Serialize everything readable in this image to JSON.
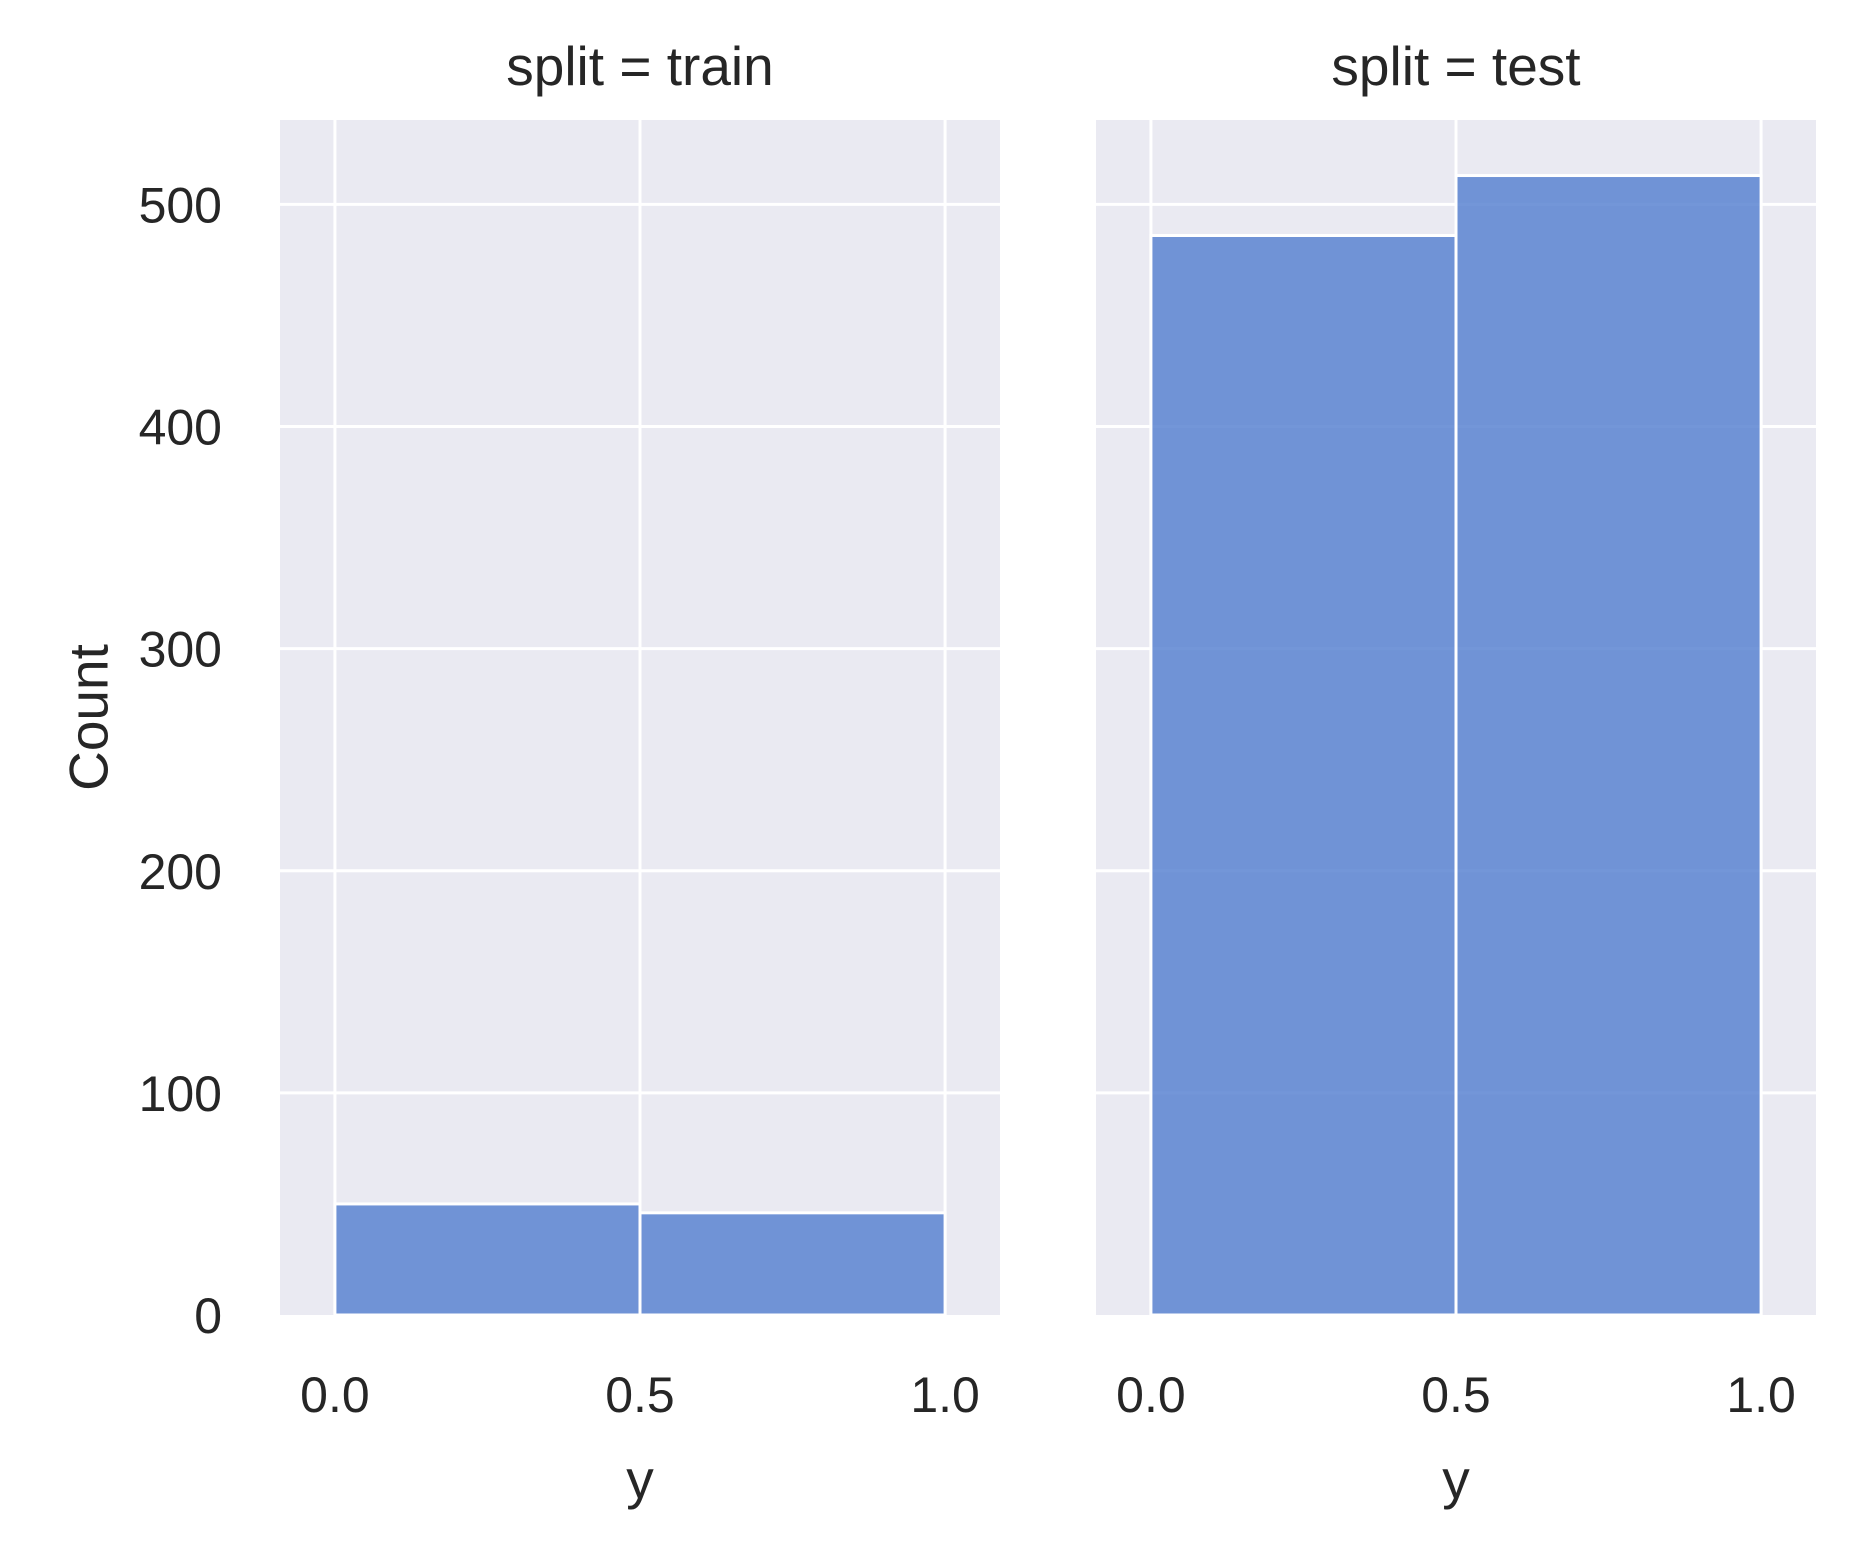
{
  "chart_data": {
    "type": "bar",
    "subtype": "histogram",
    "ylabel": "Count",
    "ylim": [
      0,
      538
    ],
    "yticks": [
      0,
      100,
      200,
      300,
      400,
      500
    ],
    "yticklabels": [
      "0",
      "100",
      "200",
      "300",
      "400",
      "500"
    ],
    "xlim": [
      -0.09,
      1.09
    ],
    "xticks": [
      0.0,
      0.5,
      1.0
    ],
    "xticklabels": [
      "0.0",
      "0.5",
      "1.0"
    ],
    "xlabel": "y",
    "grid": true,
    "bar_color": "#5b84d1",
    "background_color": "#eaeaf2",
    "panels": [
      {
        "title": "split = train",
        "bins": [
          {
            "x0": 0.0,
            "x1": 0.5,
            "count": 50
          },
          {
            "x0": 0.5,
            "x1": 1.0,
            "count": 46
          }
        ]
      },
      {
        "title": "split = test",
        "bins": [
          {
            "x0": 0.0,
            "x1": 0.5,
            "count": 486
          },
          {
            "x0": 0.5,
            "x1": 1.0,
            "count": 513
          }
        ]
      }
    ]
  }
}
